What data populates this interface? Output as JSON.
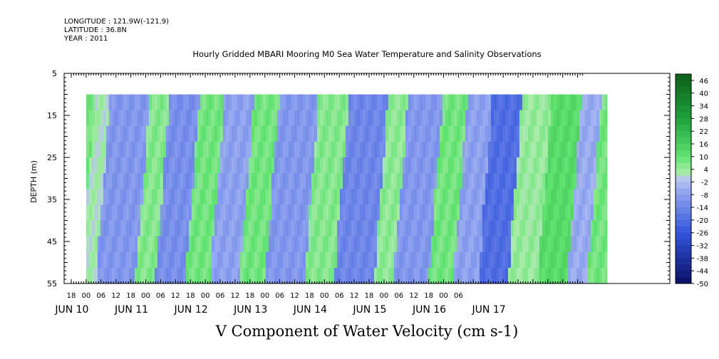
{
  "header": {
    "longitude": "LONGITUDE : 121.9W(-121.9)",
    "latitude": "LATITUDE : 36.8N",
    "year": "YEAR : 2011"
  },
  "chart_data": {
    "type": "heatmap",
    "title": "Hourly Gridded MBARI Mooring M0 Sea Water Temperature and Salinity Observations",
    "xlabel": "V Component of Water Velocity (cm s-1)",
    "ylabel": "DEPTH (m)",
    "y_ticks": [
      5,
      15,
      25,
      35,
      45,
      55
    ],
    "ylim": [
      5,
      55
    ],
    "y_inverted": true,
    "data_depth_range": [
      10,
      55
    ],
    "x_hour_ticks": [
      "18",
      "00",
      "06",
      "12",
      "18",
      "00",
      "06",
      "12",
      "18",
      "00",
      "06",
      "12",
      "18",
      "00",
      "06",
      "12",
      "18",
      "00",
      "06",
      "12",
      "18",
      "00",
      "06",
      "12",
      "18",
      "00",
      "06"
    ],
    "x_day_labels": [
      "JUN 10",
      "JUN 11",
      "JUN 12",
      "JUN 13",
      "JUN 14",
      "JUN 15",
      "JUN 16",
      "JUN 17"
    ],
    "colorbar": {
      "labels": [
        "46",
        "40",
        "34",
        "28",
        "22",
        "16",
        "10",
        "4",
        "-2",
        "-8",
        "-14",
        "-20",
        "-26",
        "-32",
        "-38",
        "-44",
        "-50"
      ],
      "range": [
        -50,
        49
      ],
      "step": 3
    },
    "colors": {
      "strong_positive": "#0b5e1a",
      "positive": "#5fe26f",
      "near_zero": "#b7c3f4",
      "negative": "#3355dd",
      "strong_negative": "#0a0f66"
    },
    "time_bands_hours": [
      {
        "start": 0,
        "end": 6,
        "value": 2
      },
      {
        "start": 6,
        "end": 22,
        "value": -10
      },
      {
        "start": 22,
        "end": 30,
        "value": 6
      },
      {
        "start": 30,
        "end": 42,
        "value": -12
      },
      {
        "start": 42,
        "end": 52,
        "value": 8
      },
      {
        "start": 52,
        "end": 64,
        "value": -8
      },
      {
        "start": 64,
        "end": 74,
        "value": 8
      },
      {
        "start": 74,
        "end": 90,
        "value": -10
      },
      {
        "start": 90,
        "end": 102,
        "value": 6
      },
      {
        "start": 102,
        "end": 118,
        "value": -14
      },
      {
        "start": 118,
        "end": 126,
        "value": 5
      },
      {
        "start": 126,
        "end": 140,
        "value": -10
      },
      {
        "start": 140,
        "end": 150,
        "value": 8
      },
      {
        "start": 150,
        "end": 160,
        "value": -8
      },
      {
        "start": 160,
        "end": 172,
        "value": -20
      },
      {
        "start": 172,
        "end": 184,
        "value": 4
      },
      {
        "start": 184,
        "end": 196,
        "value": 12
      },
      {
        "start": 196,
        "end": 204,
        "value": -6
      },
      {
        "start": 204,
        "end": 210,
        "value": 8
      }
    ]
  }
}
